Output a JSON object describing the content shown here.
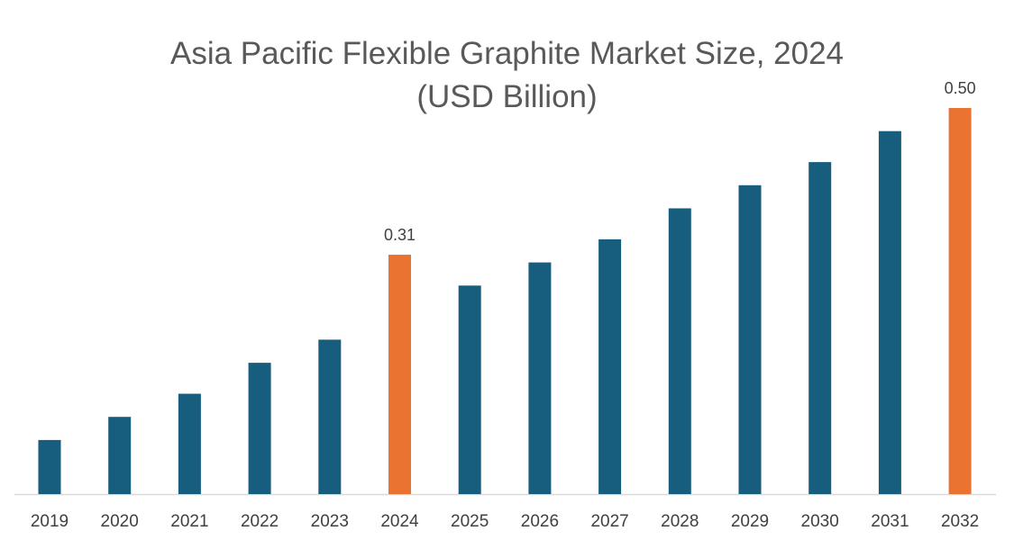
{
  "chart_data": {
    "type": "bar",
    "title_line1": "Asia Pacific Flexible Graphite Market Size, 2024",
    "title_line2": "(USD Billion)",
    "xlabel": "",
    "ylabel": "",
    "categories": [
      "2019",
      "2020",
      "2021",
      "2022",
      "2023",
      "2024",
      "2025",
      "2026",
      "2027",
      "2028",
      "2029",
      "2030",
      "2031",
      "2032"
    ],
    "values": [
      0.07,
      0.1,
      0.13,
      0.17,
      0.2,
      0.31,
      0.27,
      0.3,
      0.33,
      0.37,
      0.4,
      0.43,
      0.47,
      0.5
    ],
    "data_labels": {
      "2024": "0.31",
      "2032": "0.50"
    },
    "highlight_categories": [
      "2024",
      "2032"
    ],
    "ylim": [
      0,
      0.5
    ],
    "grid": false,
    "legend": "none",
    "colors": {
      "bar": "#175E7E",
      "highlight": "#EB7331",
      "axis": "#d9d9d9"
    }
  }
}
